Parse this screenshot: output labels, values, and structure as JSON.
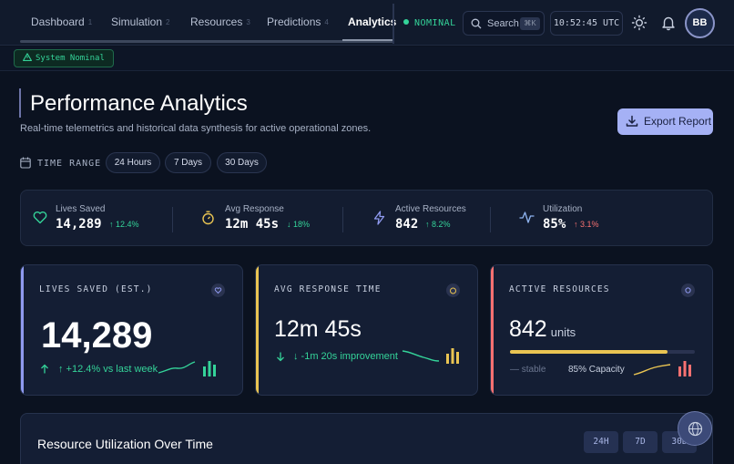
{
  "nav": {
    "items": [
      {
        "label": "Dashboard",
        "num": "1"
      },
      {
        "label": "Simulation",
        "num": "2"
      },
      {
        "label": "Resources",
        "num": "3"
      },
      {
        "label": "Predictions",
        "num": "4"
      },
      {
        "label": "Analytics",
        "num": ""
      }
    ],
    "status": "NOMINAL",
    "search_label": "Search",
    "search_shortcut": "⌘K",
    "clock": "10:52:45 UTC",
    "avatar_initials": "BB"
  },
  "system_badge": "System Nominal",
  "header": {
    "title": "Performance Analytics",
    "subtitle": "Real-time telemetrics and historical data synthesis for active operational zones.",
    "export_label": "Export Report"
  },
  "time_range": {
    "label": "TIME RANGE",
    "options": [
      "24 Hours",
      "7 Days",
      "30 Days"
    ]
  },
  "metrics": [
    {
      "label": "Lives Saved",
      "value": "14,289",
      "delta": "↑ 12.4%",
      "icon": "heart-icon"
    },
    {
      "label": "Avg Response",
      "value": "12m 45s",
      "delta": "↓ 18%",
      "icon": "stopwatch-icon"
    },
    {
      "label": "Active Resources",
      "value": "842",
      "delta": "↑ 8.2%",
      "icon": "lightning-icon"
    },
    {
      "label": "Utilization",
      "value": "85%",
      "delta": "↑ 3.1%",
      "icon": "activity-icon"
    }
  ],
  "cards": {
    "lives": {
      "title": "LIVES SAVED (EST.)",
      "value": "14,289",
      "trend": "↑ +12.4% vs last week"
    },
    "response": {
      "title": "AVG RESPONSE TIME",
      "value": "12m 45s",
      "trend": "↓ -1m 20s improvement"
    },
    "resources": {
      "title": "ACTIVE RESOURCES",
      "value": "842",
      "unit": "units",
      "stable": "— stable",
      "capacity": "85% Capacity",
      "capacity_fraction": 0.85
    }
  },
  "utilization": {
    "title": "Resource Utilization Over Time",
    "ranges": [
      "24H",
      "7D",
      "30D"
    ]
  },
  "colors": {
    "accent": "#a5b1f5",
    "green": "#34d399",
    "yellow": "#e9c452",
    "red": "#f87171",
    "background": "#0b1220"
  }
}
